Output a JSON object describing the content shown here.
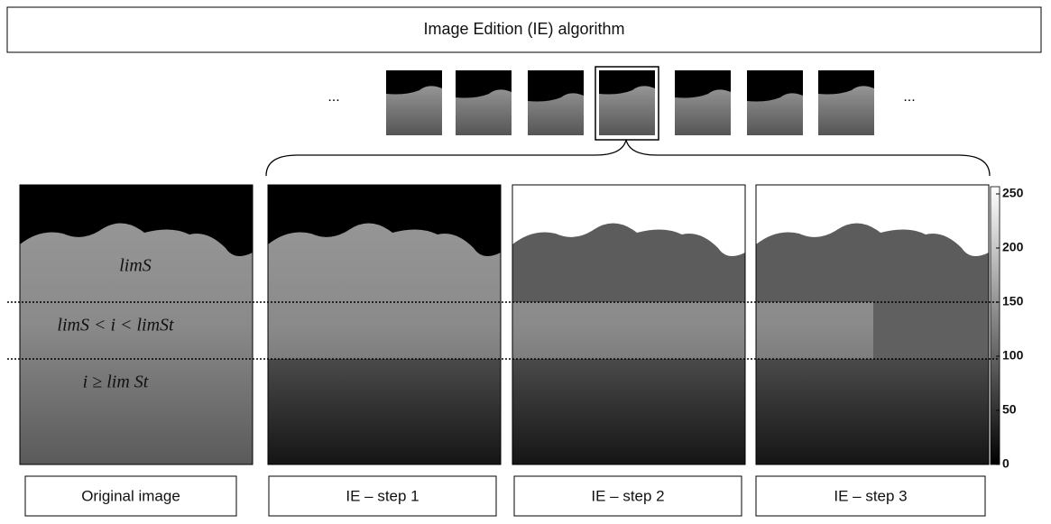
{
  "header": {
    "title": "Image Edition (IE) algorithm"
  },
  "thumbnails": {
    "ellipsis_left": "...",
    "ellipsis_right": "..."
  },
  "annotations": [
    "limS",
    "limS < i < limSt",
    "i ≥ lim St"
  ],
  "panels": [
    {
      "caption": "Original image"
    },
    {
      "caption": "IE – step 1"
    },
    {
      "caption": "IE – step 2"
    },
    {
      "caption": "IE – step 3"
    }
  ],
  "colorbar": {
    "ticks": [
      0,
      50,
      100,
      150,
      200,
      250
    ]
  }
}
